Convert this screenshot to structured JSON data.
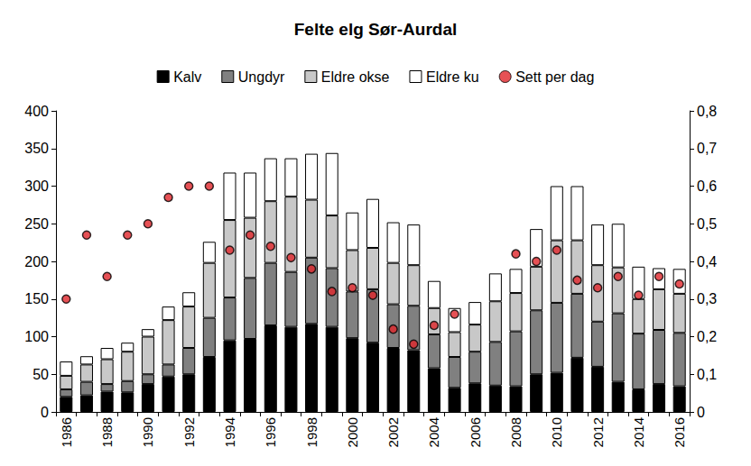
{
  "chart_data": {
    "type": "bar",
    "title": "Felte elg Sør-Aurdal",
    "stacked": true,
    "grid": false,
    "legend": "top",
    "categories": [
      "1986",
      null,
      "1988",
      null,
      "1990",
      null,
      "1992",
      null,
      "1994",
      null,
      "1996",
      null,
      "1998",
      null,
      "2000",
      null,
      "2002",
      null,
      "2004",
      null,
      "2006",
      null,
      "2008",
      null,
      "2010",
      null,
      "2012",
      null,
      "2014",
      null,
      "2016"
    ],
    "series": [
      {
        "name": "Kalv",
        "type": "bar",
        "color": "#000000",
        "values": [
          20,
          22,
          27,
          26,
          37,
          47,
          50,
          73,
          95,
          97,
          115,
          113,
          117,
          113,
          98,
          92,
          85,
          82,
          58,
          32,
          38,
          35,
          34,
          50,
          52,
          72,
          60,
          40,
          30,
          37,
          34
        ]
      },
      {
        "name": "Ungdyr",
        "type": "bar",
        "color": "#808080",
        "values": [
          10,
          18,
          10,
          15,
          13,
          16,
          35,
          52,
          57,
          81,
          83,
          73,
          88,
          78,
          62,
          71,
          58,
          59,
          45,
          41,
          42,
          58,
          73,
          85,
          93,
          85,
          60,
          91,
          74,
          72,
          71
        ]
      },
      {
        "name": "Eldre okse",
        "type": "bar",
        "color": "#c8c8c8",
        "values": [
          18,
          23,
          33,
          39,
          50,
          59,
          55,
          73,
          103,
          80,
          82,
          100,
          77,
          70,
          55,
          55,
          55,
          54,
          35,
          33,
          36,
          54,
          51,
          58,
          83,
          71,
          75,
          61,
          46,
          54,
          52
        ]
      },
      {
        "name": "Eldre ku",
        "type": "bar",
        "color": "#ffffff",
        "values": [
          19,
          11,
          15,
          12,
          10,
          18,
          19,
          28,
          63,
          60,
          57,
          51,
          61,
          83,
          50,
          65,
          54,
          54,
          36,
          32,
          30,
          37,
          32,
          50,
          72,
          72,
          54,
          58,
          43,
          28,
          33
        ]
      },
      {
        "name": "Sett per dag",
        "type": "scatter",
        "axis": "y2",
        "marker": "circle",
        "color": "#e0262a",
        "values": [
          0.3,
          0.47,
          0.36,
          0.47,
          0.5,
          0.57,
          0.6,
          0.6,
          0.43,
          0.47,
          0.44,
          0.41,
          0.38,
          0.32,
          0.33,
          0.31,
          0.22,
          0.18,
          0.23,
          0.26,
          null,
          null,
          0.42,
          0.4,
          0.43,
          0.35,
          0.33,
          0.36,
          0.31,
          0.36,
          0.34
        ]
      }
    ],
    "ylim": [
      0,
      400
    ],
    "yticks": [
      0,
      50,
      100,
      150,
      200,
      250,
      300,
      350,
      400
    ],
    "y2lim": [
      0,
      0.8
    ],
    "y2ticks": [
      0,
      {
        "value": 0.1,
        "label": "0,1"
      },
      {
        "value": 0.2,
        "label": "0,2"
      },
      {
        "value": 0.3,
        "label": "0,3"
      },
      {
        "value": 0.4,
        "label": "0,4"
      },
      {
        "value": 0.5,
        "label": "0,5"
      },
      {
        "value": 0.6,
        "label": "0,6"
      },
      {
        "value": 0.7,
        "label": "0,7"
      },
      {
        "value": 0.8,
        "label": "0,8"
      }
    ]
  }
}
